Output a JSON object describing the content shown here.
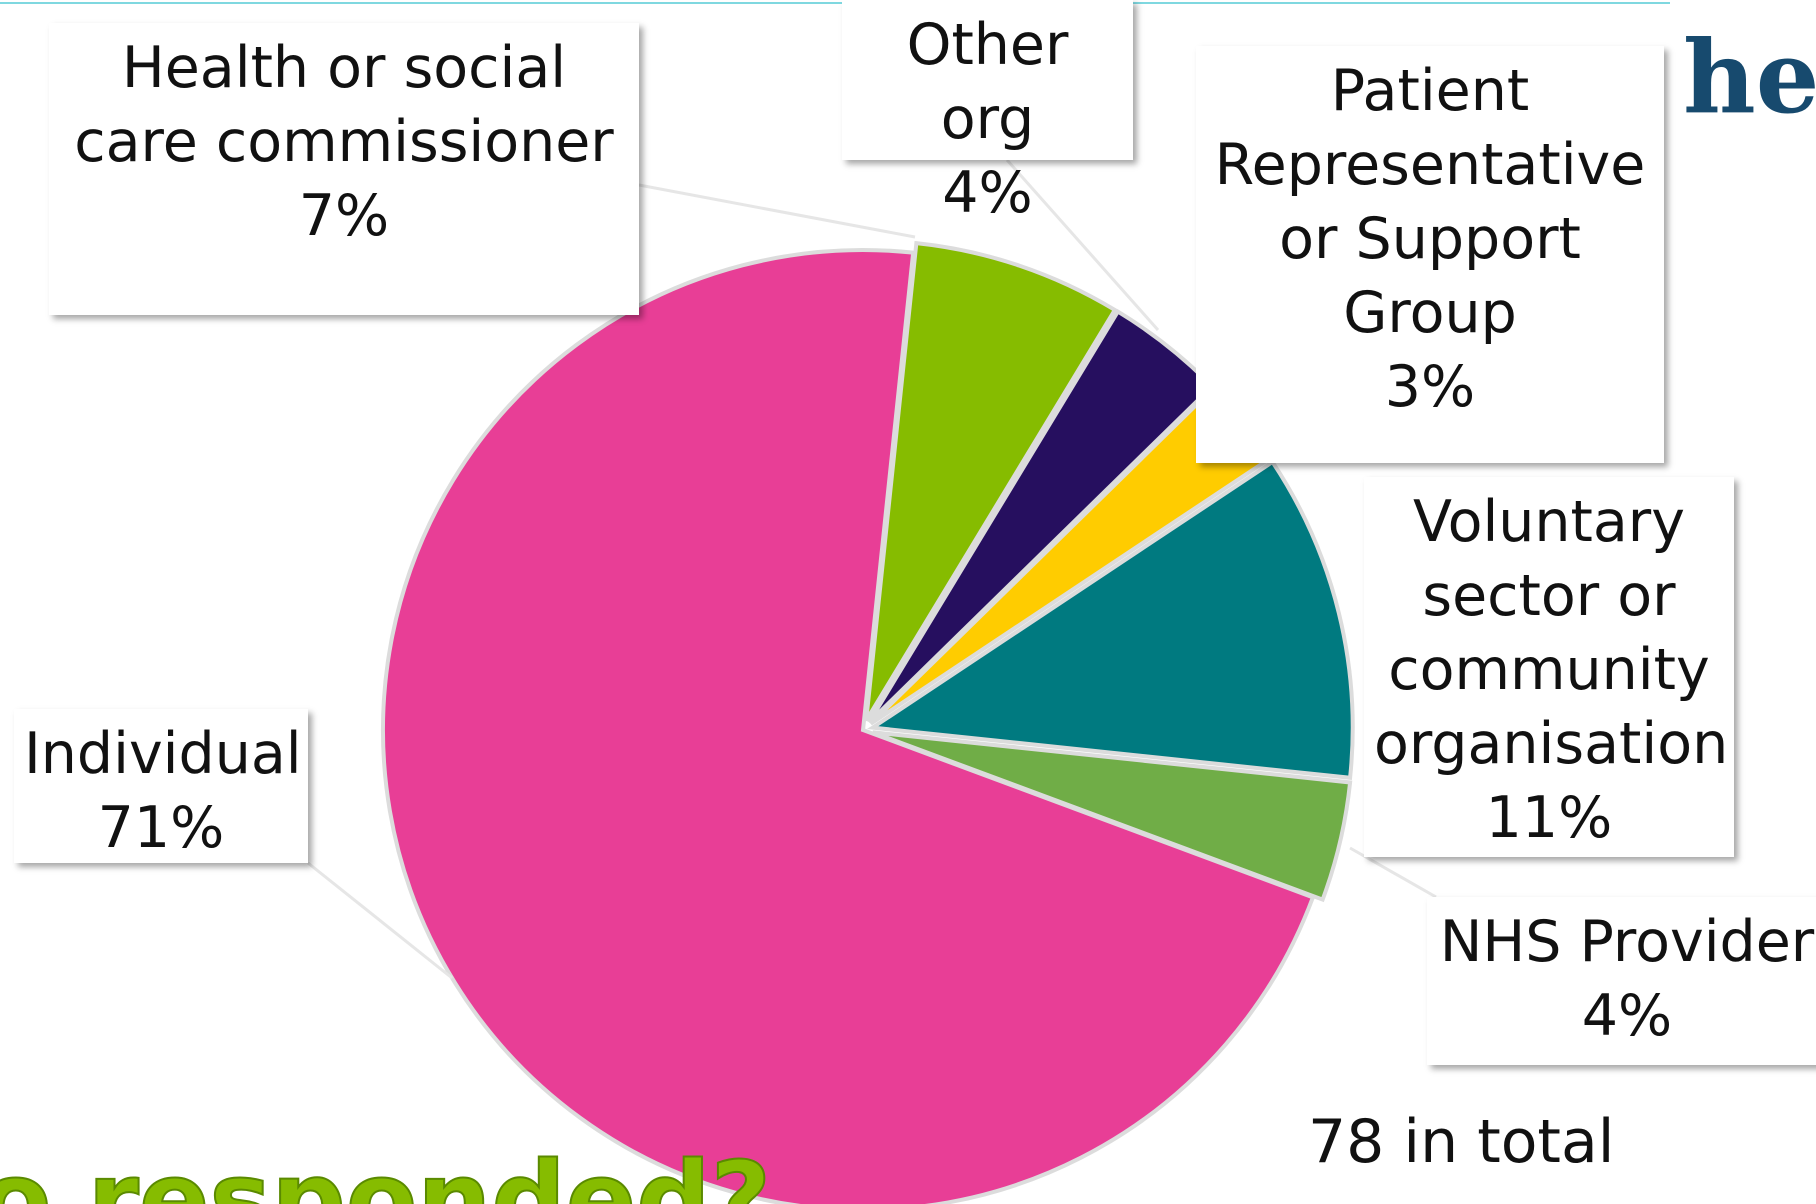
{
  "chart_data": {
    "type": "pie",
    "title": "o responded?",
    "logo": "hea",
    "annotation": "78 in total",
    "categories": [
      "Health or social care commissioner",
      "Other org",
      "Patient Representative or Support Group",
      "Voluntary sector or community organisation",
      "NHS Provider",
      "Individual"
    ],
    "values": [
      7,
      4,
      3,
      11,
      4,
      71
    ],
    "value_labels": [
      "7%",
      "4%",
      "3%",
      "11%",
      "4%",
      "71%"
    ],
    "colors": [
      "#86bc00",
      "#260f5f",
      "#ffcc00",
      "#007a80",
      "#70ad47",
      "#e83e96"
    ]
  }
}
